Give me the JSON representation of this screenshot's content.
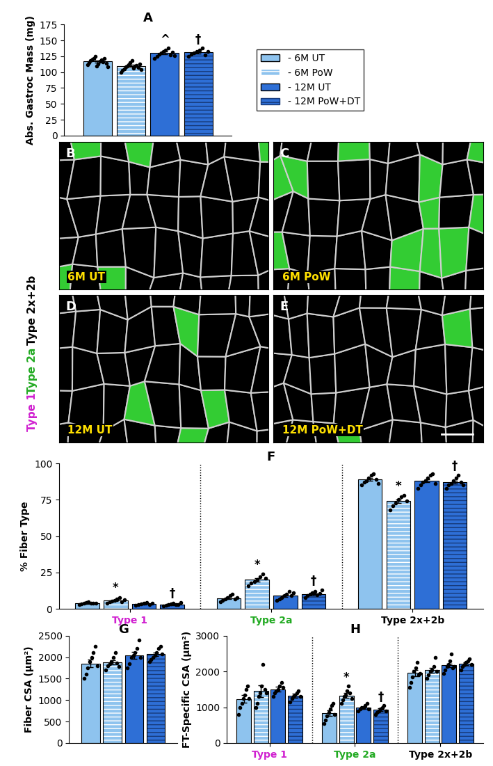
{
  "chart_data": [
    {
      "type": "bar",
      "panel": "A",
      "y_label": "Abs. Gastroc Mass (mg)",
      "categories": [
        null
      ],
      "ylim": [
        0,
        175
      ],
      "yticks": [
        0,
        25,
        50,
        75,
        100,
        125,
        150,
        175
      ],
      "tick_labels": "y",
      "legend": "center left",
      "series": [
        {
          "name": "- 6M UT",
          "color": "#8ec3ee",
          "values": [
            117
          ],
          "errors": [
            1.8
          ],
          "sig": [
            null
          ],
          "points": [
            [
              112,
              115,
              118,
              120,
              122,
              125,
              110,
              113,
              117,
              119,
              116,
              121,
              114,
              108
            ]
          ]
        },
        {
          "name": "- 6M PoW",
          "color": "#8ec3ee",
          "values": [
            110
          ],
          "errors": [
            2
          ],
          "sig": [
            null
          ],
          "points": [
            [
              100,
              103,
              105,
              108,
              110,
              112,
              115,
              118,
              106,
              109,
              111,
              107,
              113,
              104
            ]
          ]
        },
        {
          "name": "- 12M UT",
          "color": "#2e6fd6",
          "values": [
            130
          ],
          "errors": [
            2
          ],
          "sig": [
            "^"
          ],
          "points": [
            [
              122,
              125,
              128,
              130,
              132,
              135,
              138,
              127,
              131,
              126
            ]
          ]
        },
        {
          "name": "- 12M PoW+DT",
          "color": "#2e6fd6",
          "values": [
            131
          ],
          "errors": [
            2
          ],
          "sig": [
            "†"
          ],
          "points": [
            [
              125,
              128,
              130,
              132,
              135,
              138,
              127,
              133
            ]
          ]
        }
      ]
    },
    {
      "type": "bar",
      "panel": "F",
      "y_label": "% Fiber Type",
      "categories": [
        "Type 1",
        "Type 2a",
        "Type 2x+2b"
      ],
      "ylim": [
        0,
        100
      ],
      "yticks": [
        0,
        25,
        50,
        75,
        100
      ],
      "series": [
        {
          "color": "#8ec3ee",
          "values": [
            4,
            7.5,
            89
          ],
          "errors": [
            0.3,
            0.8,
            1
          ],
          "sig": [
            null,
            null,
            null
          ],
          "points": [
            [
              3,
              3.5,
              4,
              4.5,
              5,
              3.8,
              4.2,
              4
            ],
            [
              5,
              6,
              7,
              8,
              9,
              10,
              7,
              8
            ],
            [
              85,
              87,
              88,
              90,
              92,
              93,
              89,
              86
            ]
          ]
        },
        {
          "color": "#8ec3ee",
          "values": [
            6,
            20,
            74
          ],
          "errors": [
            0.5,
            1.2,
            1.3
          ],
          "sig": [
            "*",
            "*",
            "*"
          ],
          "points": [
            [
              4,
              5,
              5.5,
              6,
              7,
              8,
              5,
              6.5
            ],
            [
              16,
              18,
              19,
              20,
              22,
              24,
              21
            ],
            [
              68,
              71,
              73,
              75,
              77,
              78,
              74
            ]
          ]
        },
        {
          "color": "#2e6fd6",
          "values": [
            3.5,
            9,
            88
          ],
          "errors": [
            0.3,
            0.8,
            1
          ],
          "sig": [
            null,
            null,
            null
          ],
          "points": [
            [
              2.5,
              3,
              3.5,
              4,
              4.5,
              3,
              3.8
            ],
            [
              6,
              7,
              8,
              9,
              10,
              12,
              9,
              11
            ],
            [
              83,
              85,
              87,
              88,
              90,
              92,
              93,
              86
            ]
          ]
        },
        {
          "color": "#2e6fd6",
          "values": [
            3,
            10,
            87
          ],
          "errors": [
            0.3,
            0.6,
            1
          ],
          "sig": [
            "†",
            "†",
            "†"
          ],
          "points": [
            [
              2,
              2.5,
              3,
              3.5,
              4,
              2.8,
              3.2,
              4.5
            ],
            [
              8,
              9,
              10,
              11,
              12,
              9.5,
              10.5,
              13
            ],
            [
              83,
              85,
              86,
              88,
              90,
              92,
              87,
              85
            ]
          ]
        }
      ]
    },
    {
      "type": "bar",
      "panel": "G",
      "y_label": "Fiber CSA (µm²)",
      "categories": [
        null
      ],
      "ylim": [
        0,
        2500
      ],
      "yticks": [
        0,
        500,
        1000,
        1500,
        2000,
        2500
      ],
      "tick_labels": "y",
      "series": [
        {
          "color": "#8ec3ee",
          "values": [
            1850
          ],
          "errors": [
            90
          ],
          "sig": [
            null
          ],
          "points": [
            [
              1500,
              1600,
              1750,
              1900,
              2000,
              2100,
              2250,
              1800
            ]
          ]
        },
        {
          "color": "#8ec3ee",
          "values": [
            1880
          ],
          "errors": [
            50
          ],
          "sig": [
            null
          ],
          "points": [
            [
              1700,
              1800,
              1850,
              1900,
              2000,
              2100,
              1870,
              1780
            ]
          ]
        },
        {
          "color": "#2e6fd6",
          "values": [
            2040
          ],
          "errors": [
            80
          ],
          "sig": [
            null
          ],
          "points": [
            [
              1750,
              1850,
              2000,
              2050,
              2100,
              2200,
              2400,
              2000
            ]
          ]
        },
        {
          "color": "#2e6fd6",
          "values": [
            2070
          ],
          "errors": [
            40
          ],
          "sig": [
            null
          ],
          "points": [
            [
              1900,
              1950,
              2000,
              2050,
              2100,
              2200,
              2250,
              2080
            ]
          ]
        }
      ]
    },
    {
      "type": "bar",
      "panel": "H",
      "y_label": "FT-Specific CSA (µm²)",
      "categories": [
        "Type 1",
        "Type 2a",
        "Type 2x+2b"
      ],
      "ylim": [
        0,
        3000
      ],
      "yticks": [
        0,
        1000,
        2000,
        3000
      ],
      "series": [
        {
          "color": "#8ec3ee",
          "values": [
            1230,
            840,
            1960
          ],
          "errors": [
            110,
            80,
            90
          ],
          "sig": [
            null,
            null,
            null
          ],
          "points": [
            [
              800,
              1000,
              1100,
              1250,
              1350,
              1500,
              1600,
              1250
            ],
            [
              550,
              650,
              750,
              850,
              950,
              1050,
              1100,
              800
            ],
            [
              1550,
              1700,
              1850,
              2000,
              2100,
              2250,
              1900,
              1950
            ]
          ]
        },
        {
          "color": "#8ec3ee",
          "values": [
            1450,
            1330,
            2040
          ],
          "errors": [
            160,
            70,
            70
          ],
          "sig": [
            null,
            "*",
            null
          ],
          "points": [
            [
              1000,
              1100,
              1300,
              1400,
              1600,
              2200,
              1500,
              1400
            ],
            [
              1100,
              1200,
              1300,
              1350,
              1450,
              1600,
              1400,
              1250
            ],
            [
              1800,
              1900,
              2000,
              2050,
              2150,
              2400,
              2000
            ]
          ]
        },
        {
          "color": "#2e6fd6",
          "values": [
            1500,
            990,
            2170
          ],
          "errors": [
            70,
            30,
            50
          ],
          "sig": [
            null,
            null,
            null
          ],
          "points": [
            [
              1300,
              1400,
              1450,
              1500,
              1600,
              1700,
              1550
            ],
            [
              900,
              950,
              1000,
              1000,
              1050,
              1100,
              950
            ],
            [
              1950,
              2050,
              2150,
              2200,
              2300,
              2500,
              2100,
              2150
            ]
          ]
        },
        {
          "color": "#2e6fd6",
          "values": [
            1330,
            940,
            2210
          ],
          "errors": [
            60,
            40,
            40
          ],
          "sig": [
            null,
            "†",
            null
          ],
          "points": [
            [
              1150,
              1250,
              1300,
              1350,
              1400,
              1450,
              1300
            ],
            [
              800,
              850,
              900,
              950,
              1000,
              1050,
              900
            ],
            [
              2050,
              2150,
              2200,
              2250,
              2300,
              2350,
              2200
            ]
          ]
        }
      ]
    }
  ],
  "images": {
    "stain_labels": [
      "Type 1",
      "Type 2a",
      "Type 2x+2b"
    ],
    "panels": [
      {
        "panel": "B",
        "label": "6M UT"
      },
      {
        "panel": "C",
        "label": "6M PoW"
      },
      {
        "panel": "D",
        "label": "12M UT"
      },
      {
        "panel": "E",
        "label": "12M PoW+DT"
      }
    ]
  }
}
